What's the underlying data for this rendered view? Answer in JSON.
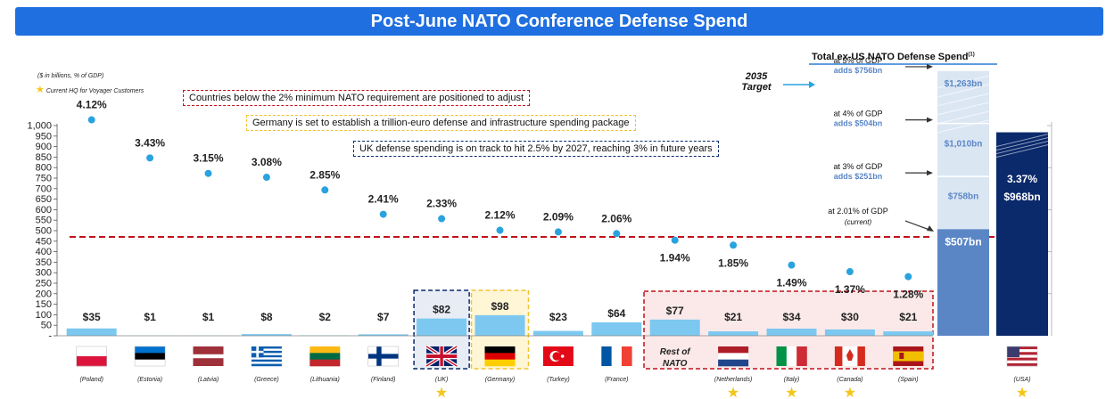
{
  "title": "Post-June NATO Conference Defense Spend",
  "units_note": "($ in billions, % of GDP)",
  "legend": {
    "star_label": "Current HQ for Voyager Customers",
    "star_color": "#f5c518"
  },
  "callouts": [
    {
      "text": "Countries below the 2% minimum NATO requirement are positioned to adjust",
      "border": "#c0131b"
    },
    {
      "text": "Germany is set to establish a trillion-euro defense and infrastructure spending package",
      "border": "#f2c230"
    },
    {
      "text": "UK defense spending is on track to hit 2.5% by 2027, reaching 3% in future years",
      "border": "#0b2a6b"
    }
  ],
  "right_panel": {
    "title": "Total ex-US NATO Defense Spend",
    "title_sup": "(1)",
    "target_label": "2035 Target",
    "tiers": [
      {
        "label": "at 5% of GDP",
        "sub": "adds $756bn",
        "value": "$1,263bn"
      },
      {
        "label": "at 4% of GDP",
        "sub": "adds $504bn",
        "value": "$1,010bn"
      },
      {
        "label": "at 3% of GDP",
        "sub": "adds $251bn",
        "value": "$758bn"
      },
      {
        "label": "at 2.01% of GDP",
        "sub": "(current)",
        "value": "$507bn"
      }
    ],
    "usa_pct": "3.37%",
    "usa_value": "$968bn",
    "usa_label": "(USA)"
  },
  "rest_of_nato_label": "Rest of NATO",
  "colors": {
    "bar": "#7cc8f0",
    "dot": "#29a3df",
    "threshold": "#c0131b",
    "banner": "#1f6fe0",
    "ex_us_current": "#5b86c6",
    "usa_bar": "#0b2a6b",
    "tier_fill": "#dbe6f3"
  },
  "chart_data": {
    "type": "bar",
    "ylabel": "",
    "y_ticks": [
      "1,000",
      "950",
      "900",
      "850",
      "800",
      "750",
      "700",
      "650",
      "600",
      "550",
      "500",
      "450",
      "400",
      "350",
      "300",
      "250",
      "200",
      "150",
      "100",
      "50",
      "-"
    ],
    "ylim": [
      0,
      1000
    ],
    "threshold_pct": 2.0,
    "categories": [
      "(Poland)",
      "(Estonia)",
      "(Latvia)",
      "(Greece)",
      "(Lithuania)",
      "(Finland)",
      "(UK)",
      "(Germany)",
      "(Turkey)",
      "(France)",
      "Rest of NATO",
      "(Netherlands)",
      "(Italy)",
      "(Canada)",
      "(Spain)"
    ],
    "spend_values": [
      35,
      1,
      1,
      8,
      2,
      7,
      82,
      98,
      23,
      64,
      77,
      21,
      34,
      30,
      21
    ],
    "spend_labels": [
      "$35",
      "$1",
      "$1",
      "$8",
      "$2",
      "$7",
      "$82",
      "$98",
      "$23",
      "$64",
      "$77",
      "$21",
      "$34",
      "$30",
      "$21"
    ],
    "gdp_pct": [
      4.12,
      3.43,
      3.15,
      3.08,
      2.85,
      2.41,
      2.33,
      2.12,
      2.09,
      2.06,
      1.94,
      1.85,
      1.49,
      1.37,
      1.28
    ],
    "gdp_pct_labels": [
      "4.12%",
      "3.43%",
      "3.15%",
      "3.08%",
      "2.85%",
      "2.41%",
      "2.33%",
      "2.12%",
      "2.09%",
      "2.06%",
      "1.94%",
      "1.85%",
      "1.49%",
      "1.37%",
      "1.28%"
    ],
    "hq_star": [
      "(UK)",
      "(Netherlands)",
      "(Italy)",
      "(Canada)",
      "(USA)"
    ],
    "stacked_ex_us": {
      "categories": [
        "Total ex-US NATO"
      ],
      "series": [
        {
          "name": "at 2.01% of GDP",
          "values": [
            507
          ]
        },
        {
          "name": "at 3% of GDP",
          "values": [
            758
          ]
        },
        {
          "name": "at 4% of GDP",
          "values": [
            1010
          ]
        },
        {
          "name": "at 5% of GDP",
          "values": [
            1263
          ]
        }
      ]
    },
    "usa": {
      "value": 968,
      "pct": 3.37
    }
  }
}
